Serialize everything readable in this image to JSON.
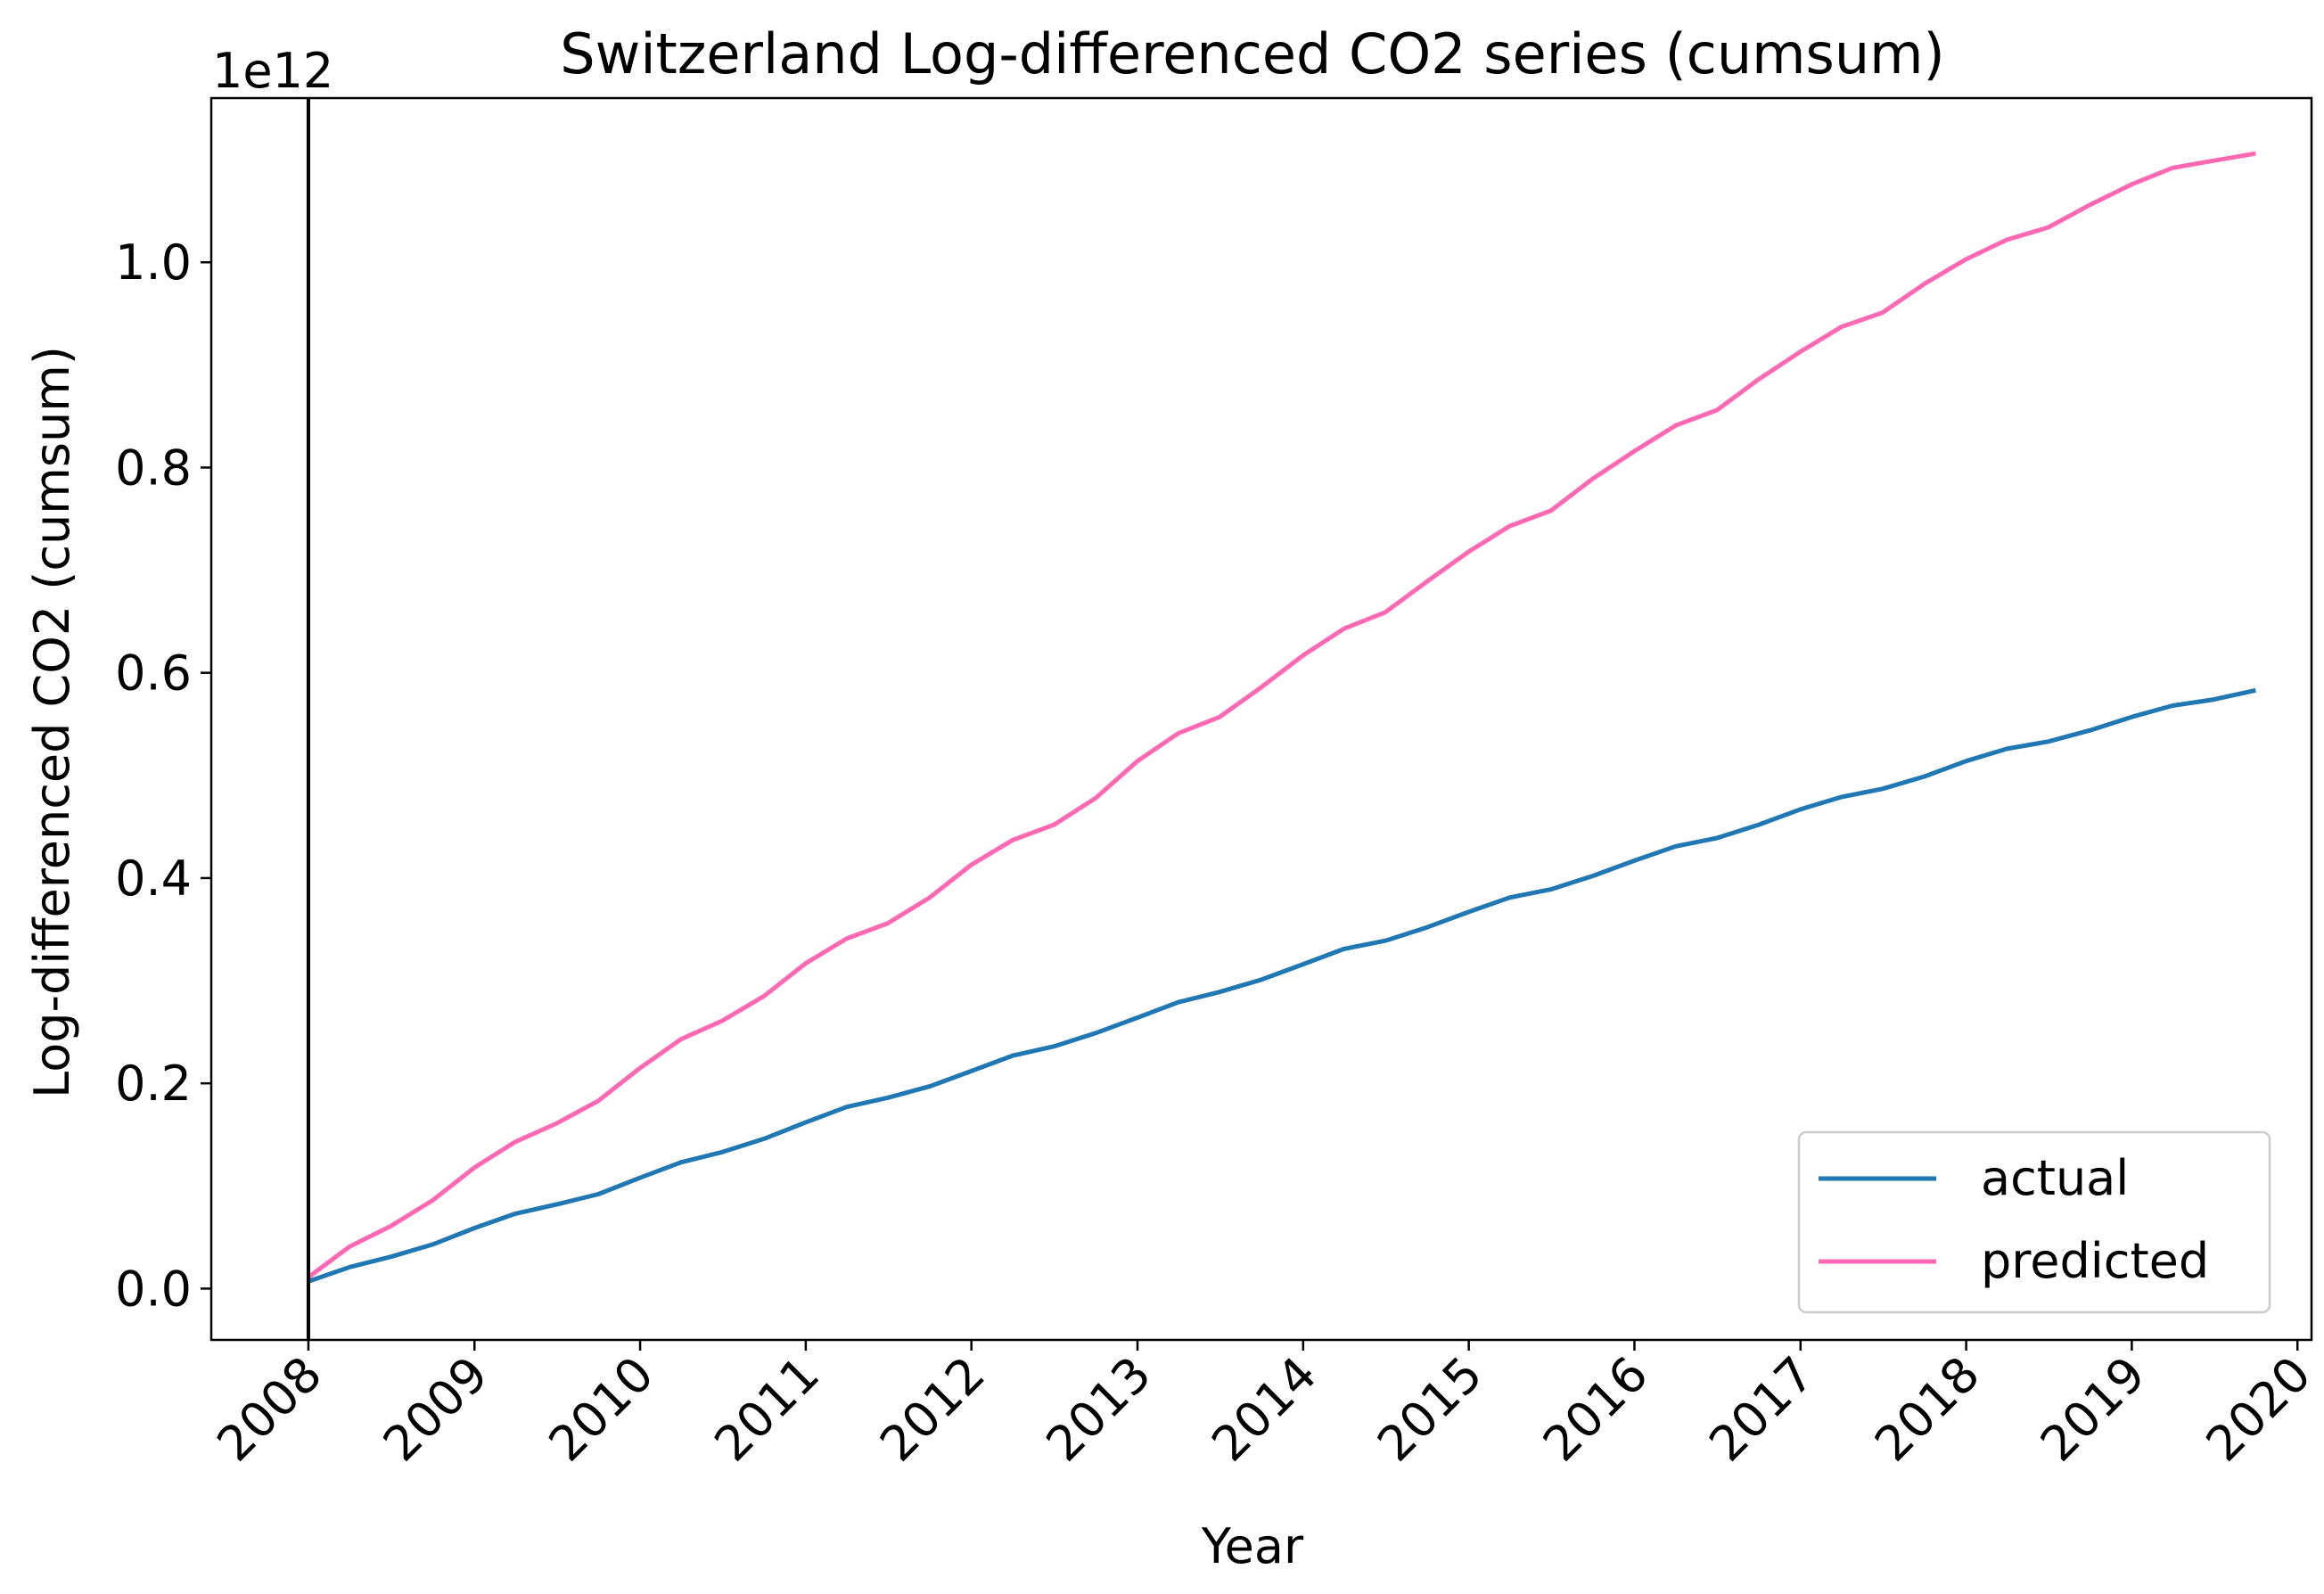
{
  "chart_data": {
    "type": "line",
    "title": "Switzerland Log-differenced CO2 series (cumsum)",
    "xlabel": "Year",
    "ylabel": "Log-differenced CO2 (cumsum)",
    "y_offset_label": "1e12",
    "xlim": [
      "2007-06-01",
      "2020-02-01"
    ],
    "ylim": [
      -0.05,
      1.16
    ],
    "x_ticks": [
      "2008",
      "2009",
      "2010",
      "2011",
      "2012",
      "2013",
      "2014",
      "2015",
      "2016",
      "2017",
      "2018",
      "2019",
      "2020"
    ],
    "y_ticks": [
      "0.0",
      "0.2",
      "0.4",
      "0.6",
      "0.8",
      "1.0"
    ],
    "y_tick_values": [
      0.0,
      0.2,
      0.4,
      0.6,
      0.8,
      1.0
    ],
    "vertical_line_x": "2008-01-01",
    "grid": false,
    "legend_position": "lower right",
    "x": [
      "2008-01",
      "2008-04",
      "2008-07",
      "2008-10",
      "2009-01",
      "2009-04",
      "2009-07",
      "2009-10",
      "2010-01",
      "2010-04",
      "2010-07",
      "2010-10",
      "2011-01",
      "2011-04",
      "2011-07",
      "2011-10",
      "2012-01",
      "2012-04",
      "2012-07",
      "2012-10",
      "2013-01",
      "2013-04",
      "2013-07",
      "2013-10",
      "2014-01",
      "2014-04",
      "2014-07",
      "2014-10",
      "2015-01",
      "2015-04",
      "2015-07",
      "2015-10",
      "2016-01",
      "2016-04",
      "2016-07",
      "2016-10",
      "2017-01",
      "2017-04",
      "2017-07",
      "2017-10",
      "2018-01",
      "2018-04",
      "2018-07",
      "2018-10",
      "2019-01",
      "2019-04",
      "2019-07",
      "2019-10"
    ],
    "series": [
      {
        "name": "actual",
        "color": "#1f77b4",
        "values": [
          0.007,
          0.021,
          0.031,
          0.043,
          0.059,
          0.073,
          0.082,
          0.092,
          0.108,
          0.123,
          0.133,
          0.146,
          0.162,
          0.177,
          0.186,
          0.197,
          0.212,
          0.227,
          0.236,
          0.249,
          0.264,
          0.279,
          0.289,
          0.301,
          0.316,
          0.331,
          0.339,
          0.352,
          0.367,
          0.381,
          0.389,
          0.402,
          0.417,
          0.431,
          0.439,
          0.452,
          0.467,
          0.479,
          0.487,
          0.499,
          0.514,
          0.526,
          0.533,
          0.544,
          0.557,
          0.568,
          0.574,
          0.583
        ]
      },
      {
        "name": "predicted",
        "color": "#ff69b4",
        "values": [
          0.011,
          0.041,
          0.061,
          0.086,
          0.118,
          0.143,
          0.161,
          0.183,
          0.215,
          0.243,
          0.261,
          0.285,
          0.317,
          0.341,
          0.356,
          0.381,
          0.413,
          0.437,
          0.452,
          0.478,
          0.514,
          0.541,
          0.557,
          0.586,
          0.617,
          0.643,
          0.659,
          0.689,
          0.718,
          0.743,
          0.758,
          0.789,
          0.816,
          0.841,
          0.856,
          0.886,
          0.913,
          0.937,
          0.951,
          0.979,
          1.003,
          1.022,
          1.034,
          1.056,
          1.076,
          1.092,
          1.099,
          1.106
        ]
      }
    ]
  }
}
